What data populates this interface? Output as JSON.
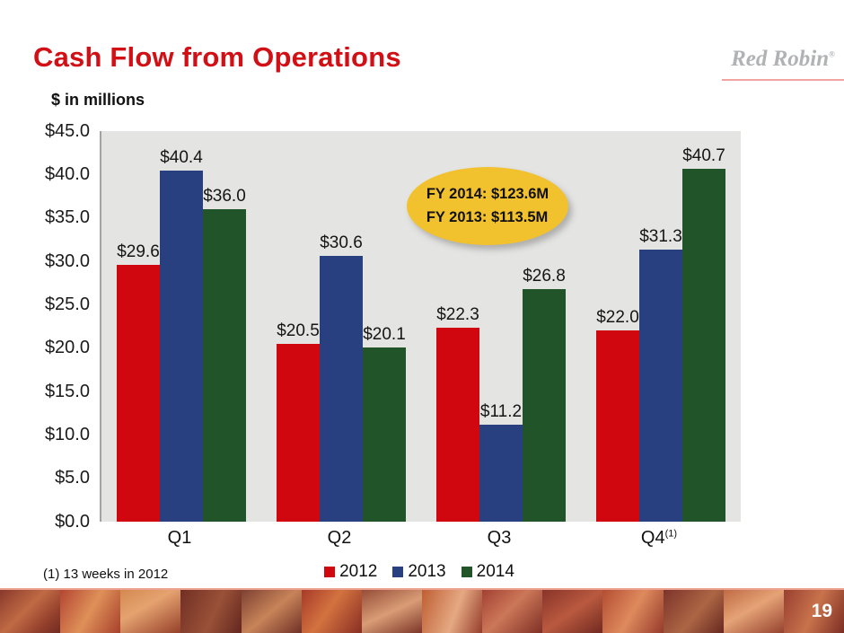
{
  "slide": {
    "title": "Cash Flow from Operations",
    "subtitle": "$ in millions",
    "footnote": "(1) 13 weeks in 2012",
    "page_number": "19"
  },
  "logo": {
    "text": "Red Robin",
    "reg_mark": "®",
    "text_color": "#b0b2b4",
    "underline_color": "#f2a49e"
  },
  "callout": {
    "lines": [
      "FY 2014: $123.6M",
      "FY 2013: $113.5M"
    ],
    "fill_color": "#f2c12e"
  },
  "chart_data": {
    "type": "bar",
    "title": "Cash Flow from Operations",
    "units_label": "$ in millions",
    "categories": [
      "Q1",
      "Q2",
      "Q3",
      "Q4"
    ],
    "category_footnote_markers": [
      "",
      "",
      "",
      "(1)"
    ],
    "series": [
      {
        "name": "2012",
        "color": "#d0070f",
        "values": [
          29.6,
          20.5,
          22.3,
          22.0
        ]
      },
      {
        "name": "2013",
        "color": "#283f80",
        "values": [
          40.4,
          30.6,
          11.2,
          31.3
        ]
      },
      {
        "name": "2014",
        "color": "#215529",
        "values": [
          36.0,
          20.1,
          26.8,
          40.7
        ]
      }
    ],
    "value_label_prefix": "$",
    "ylim": [
      0,
      45
    ],
    "ytick_step": 5,
    "ytick_labels": [
      "$45.0",
      "$40.0",
      "$35.0",
      "$30.0",
      "$25.0",
      "$20.0",
      "$15.0",
      "$10.0",
      "$5.0",
      "$0.0"
    ],
    "grid": false,
    "legend_position": "bottom-center",
    "plot_background": "#e4e4e3"
  }
}
